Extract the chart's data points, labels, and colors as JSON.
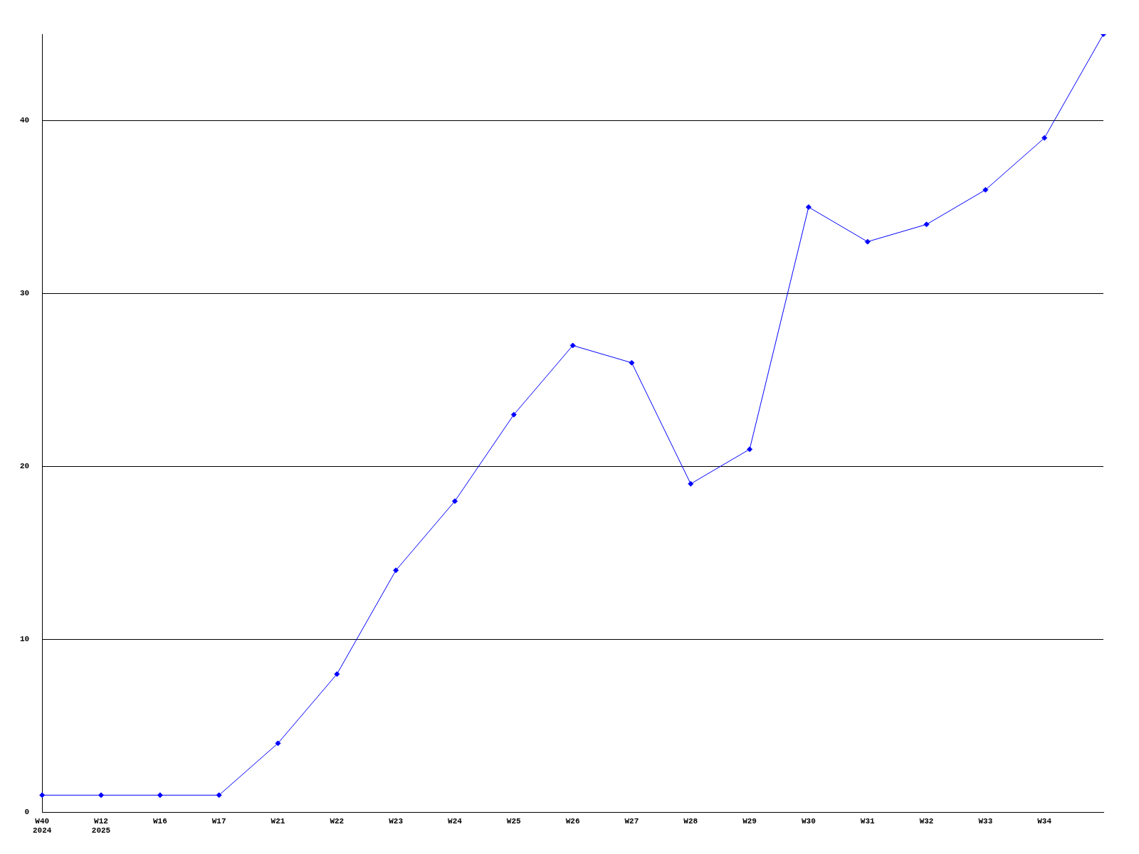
{
  "chart_data": {
    "type": "line",
    "categories": [
      "W40\n2024",
      "W12\n2025",
      "W16",
      "W17",
      "W21",
      "W22",
      "W23",
      "W24",
      "W25",
      "W26",
      "W27",
      "W28",
      "W29",
      "W30",
      "W31",
      "W32",
      "W33",
      "W34",
      null
    ],
    "series": [
      {
        "color": "#0000ff",
        "values": [
          1,
          1,
          1,
          1,
          4,
          8,
          14,
          18,
          23,
          27,
          26,
          19,
          21,
          35,
          33,
          34,
          36,
          39,
          45
        ]
      }
    ],
    "ylim": [
      0,
      45
    ],
    "yticks": [
      0,
      10,
      20,
      30,
      40
    ],
    "grid": "y",
    "legend": false,
    "marker": "diamond",
    "line_style": "solid"
  }
}
